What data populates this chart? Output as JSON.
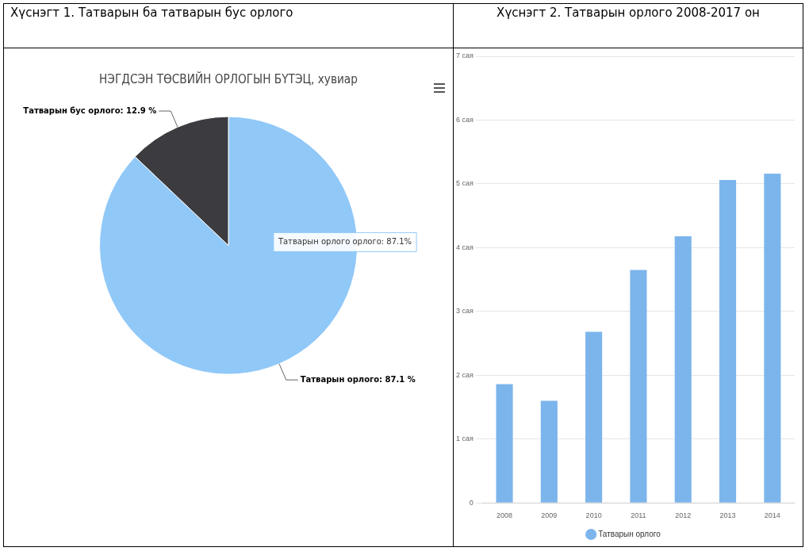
{
  "chart_data": [
    {
      "type": "pie",
      "title": "Хүснэгт 1. Татварын ба татварын бус орлого",
      "subtitle": "НЭГДСЭН ТӨСВИЙН ОРЛОГЫН БҮТЭЦ, хувиар",
      "categories": [
        "Татварын орлого",
        "Татварын бус орлого"
      ],
      "values": [
        87.1,
        12.9
      ],
      "colors": [
        "#90c8f8",
        "#3b3b40"
      ],
      "value_labels": [
        "87.1 %",
        "12.9 %"
      ],
      "annotations": [
        "Татварын орлого орлого: 87.1%"
      ]
    },
    {
      "type": "bar",
      "title": "Хүснэгт 2. Татварын орлого 2008-2017 он",
      "categories": [
        "2008",
        "2009",
        "2010",
        "2011",
        "2012",
        "2013",
        "2014"
      ],
      "series": [
        {
          "name": "Татварын орлого",
          "color": "#7cb5ec",
          "values": [
            1.86,
            1.6,
            2.68,
            3.65,
            4.18,
            5.06,
            5.16
          ]
        }
      ],
      "ylim": [
        0,
        7
      ],
      "yticks": [
        {
          "value": 0,
          "label": "0"
        },
        {
          "value": 1,
          "label": "1 сая"
        },
        {
          "value": 2,
          "label": "2 сая"
        },
        {
          "value": 3,
          "label": "3 сая"
        },
        {
          "value": 4,
          "label": "4 сая"
        },
        {
          "value": 5,
          "label": "5 сая"
        },
        {
          "value": 6,
          "label": "6 сая"
        },
        {
          "value": 7,
          "label": "7 сая"
        }
      ],
      "grid": "y",
      "legend": "bottom"
    }
  ]
}
